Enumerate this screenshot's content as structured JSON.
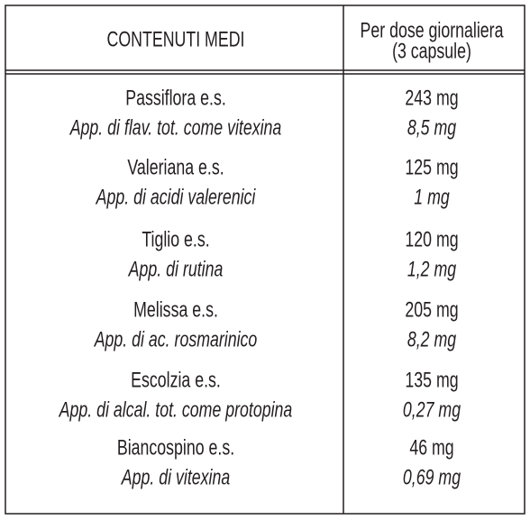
{
  "header": {
    "left": "CONTENUTI MEDI",
    "right": [
      "Per dose giornaliera",
      "(3 capsule)"
    ]
  },
  "rows": [
    {
      "name": "Passiflora e.s.",
      "note": "App. di flav. tot. come vitexina",
      "dose": "243 mg",
      "dose_note": "8,5 mg"
    },
    {
      "name": "Valeriana e.s.",
      "note": "App. di acidi valerenici",
      "dose": "125 mg",
      "dose_note": "1 mg"
    },
    {
      "name": "Tiglio e.s.",
      "note": "App. di rutina",
      "dose": "120 mg",
      "dose_note": "1,2 mg"
    },
    {
      "name": "Melissa e.s.",
      "note": "App. di ac. rosmarinico",
      "dose": "205 mg",
      "dose_note": "8,2 mg"
    },
    {
      "name": "Escolzia e.s.",
      "note": "App. di alcal. tot. come protopina",
      "dose": "135 mg",
      "dose_note": "0,27 mg"
    },
    {
      "name": "Biancospino e.s.",
      "note": "App. di vitexina",
      "dose": "46 mg",
      "dose_note": "0,69 mg"
    }
  ]
}
